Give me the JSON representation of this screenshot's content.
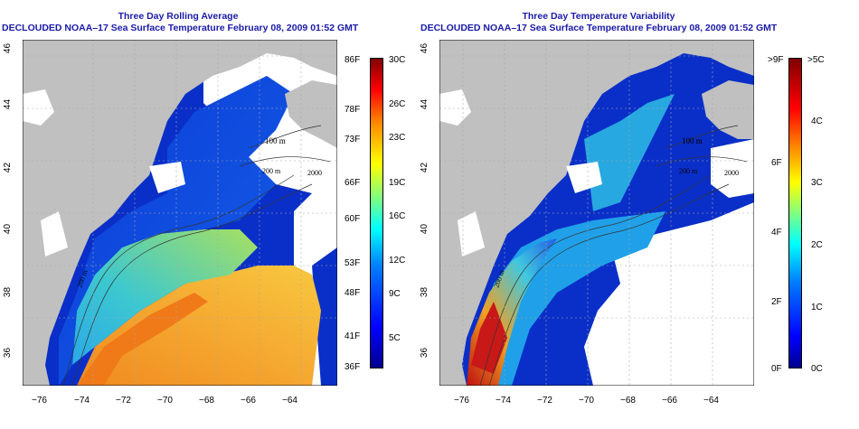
{
  "left_map": {
    "title_line1": "Three Day Rolling Average",
    "title_line2": "DECLOUDED NOAA–17 Sea Surface Temperature February 08, 2009 01:52 GMT",
    "colorbar": {
      "f_labels": [
        "86F",
        "78F",
        "73F",
        "66F",
        "60F",
        "53F",
        "48F",
        "41F",
        "36F"
      ],
      "c_labels": [
        "30C",
        "26C",
        "23C",
        "19C",
        "16C",
        "12C",
        "9C",
        "5C"
      ],
      "range_c": [
        0,
        30
      ]
    }
  },
  "right_map": {
    "title_line1": "Three Day Temperature Variability",
    "title_line2": "DECLOUDED NOAA–17 Sea Surface Temperature February 08, 2009 01:52 GMT",
    "colorbar": {
      "f_labels": [
        ">9F",
        "6F",
        "4F",
        "2F",
        "0F"
      ],
      "c_labels": [
        ">5C",
        "4C",
        "3C",
        "2C",
        "1C",
        "0C"
      ],
      "range_c": [
        0,
        5
      ]
    }
  },
  "axes": {
    "x_ticks": [
      "−76",
      "−74",
      "−72",
      "−70",
      "−68",
      "−66",
      "−64"
    ],
    "y_ticks": [
      "46",
      "44",
      "42",
      "40",
      "38",
      "36"
    ]
  },
  "contours": {
    "left": [
      "100 m",
      "200 m",
      "2000",
      "200 m"
    ],
    "right": [
      "100 m",
      "200 m",
      "2000",
      "200 m"
    ]
  },
  "colors": {
    "land": "#c0c0c0",
    "cloud": "#ffffff",
    "title": "#1a1aa8"
  }
}
